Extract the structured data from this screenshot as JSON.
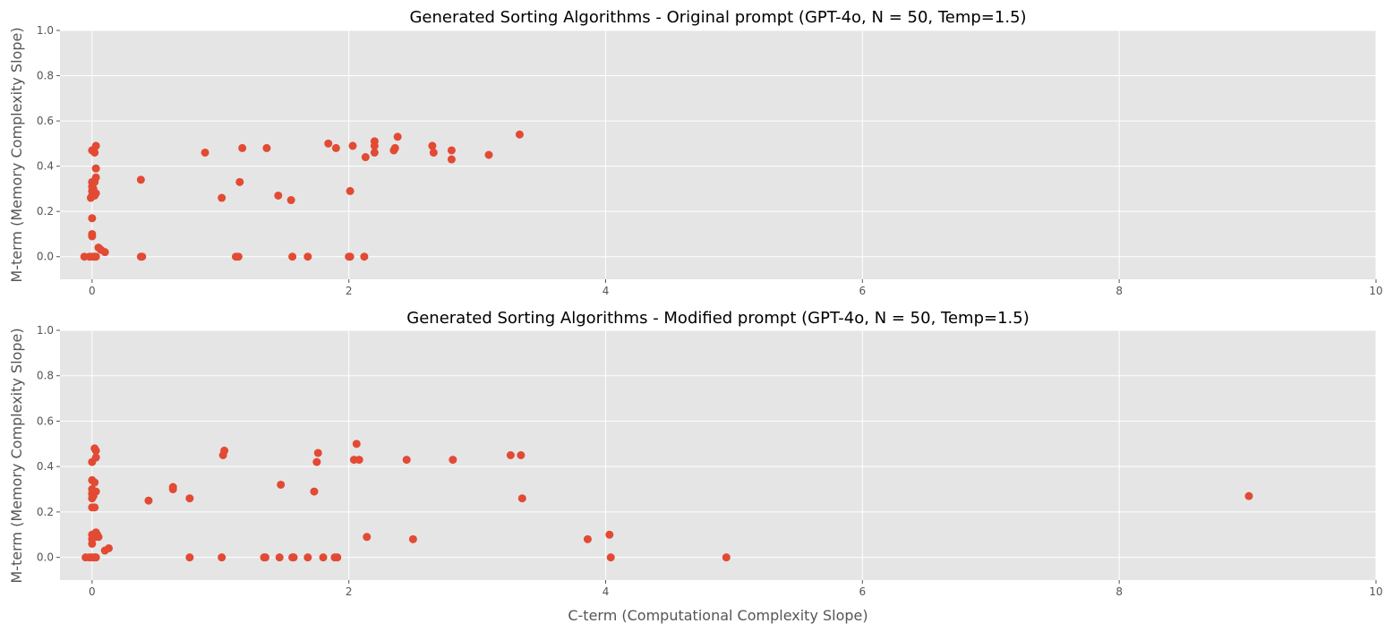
{
  "chart_data": [
    {
      "type": "scatter",
      "title": "Generated Sorting Algorithms - Original prompt (GPT-4o, N = 50, Temp=1.5)",
      "xlabel": "",
      "ylabel": "M-term (Memory Complexity Slope)",
      "xlim": [
        -0.25,
        10
      ],
      "ylim": [
        -0.1,
        1.0
      ],
      "xticks": [
        0,
        2,
        4,
        6,
        8,
        10
      ],
      "yticks": [
        0.0,
        0.2,
        0.4,
        0.6,
        0.8,
        1.0
      ],
      "xtick_labels": [
        "0",
        "2",
        "4",
        "6",
        "8",
        "10"
      ],
      "ytick_labels": [
        "0.0",
        "0.2",
        "0.4",
        "0.6",
        "0.8",
        "1.0"
      ],
      "grid": true,
      "marker_color": "#e24a33",
      "points": [
        [
          -0.06,
          0.0
        ],
        [
          -0.02,
          0.0
        ],
        [
          0.0,
          0.0
        ],
        [
          0.02,
          0.0
        ],
        [
          0.03,
          0.0
        ],
        [
          0.0,
          0.09
        ],
        [
          0.0,
          0.1
        ],
        [
          0.0,
          0.17
        ],
        [
          -0.01,
          0.26
        ],
        [
          0.0,
          0.27
        ],
        [
          0.01,
          0.28
        ],
        [
          0.0,
          0.29
        ],
        [
          0.01,
          0.3
        ],
        [
          0.0,
          0.31
        ],
        [
          0.0,
          0.33
        ],
        [
          0.02,
          0.33
        ],
        [
          0.03,
          0.35
        ],
        [
          0.02,
          0.27
        ],
        [
          0.03,
          0.28
        ],
        [
          0.03,
          0.39
        ],
        [
          0.0,
          0.47
        ],
        [
          0.02,
          0.46
        ],
        [
          0.03,
          0.49
        ],
        [
          0.05,
          0.04
        ],
        [
          0.07,
          0.03
        ],
        [
          0.1,
          0.02
        ],
        [
          0.38,
          0.0
        ],
        [
          0.39,
          0.0
        ],
        [
          0.38,
          0.34
        ],
        [
          0.88,
          0.46
        ],
        [
          1.01,
          0.26
        ],
        [
          1.12,
          0.0
        ],
        [
          1.14,
          0.0
        ],
        [
          1.15,
          0.33
        ],
        [
          1.17,
          0.48
        ],
        [
          1.36,
          0.48
        ],
        [
          1.45,
          0.27
        ],
        [
          1.55,
          0.25
        ],
        [
          1.56,
          0.0
        ],
        [
          1.68,
          0.0
        ],
        [
          1.84,
          0.5
        ],
        [
          1.9,
          0.48
        ],
        [
          2.0,
          0.0
        ],
        [
          2.01,
          0.0
        ],
        [
          2.01,
          0.29
        ],
        [
          2.03,
          0.49
        ],
        [
          2.12,
          0.0
        ],
        [
          2.13,
          0.44
        ],
        [
          2.2,
          0.46
        ],
        [
          2.2,
          0.49
        ],
        [
          2.2,
          0.51
        ],
        [
          2.35,
          0.47
        ],
        [
          2.36,
          0.48
        ],
        [
          2.38,
          0.53
        ],
        [
          2.65,
          0.49
        ],
        [
          2.66,
          0.46
        ],
        [
          2.8,
          0.43
        ],
        [
          2.8,
          0.47
        ],
        [
          3.09,
          0.45
        ],
        [
          3.33,
          0.54
        ]
      ]
    },
    {
      "type": "scatter",
      "title": "Generated Sorting Algorithms - Modified prompt (GPT-4o, N = 50, Temp=1.5)",
      "xlabel": "C-term (Computational Complexity Slope)",
      "ylabel": "M-term (Memory Complexity Slope)",
      "xlim": [
        -0.25,
        10
      ],
      "ylim": [
        -0.1,
        1.0
      ],
      "xticks": [
        0,
        2,
        4,
        6,
        8,
        10
      ],
      "yticks": [
        0.0,
        0.2,
        0.4,
        0.6,
        0.8,
        1.0
      ],
      "xtick_labels": [
        "0",
        "2",
        "4",
        "6",
        "8",
        "10"
      ],
      "ytick_labels": [
        "0.0",
        "0.2",
        "0.4",
        "0.6",
        "0.8",
        "1.0"
      ],
      "grid": true,
      "marker_color": "#e24a33",
      "points": [
        [
          -0.05,
          0.0
        ],
        [
          -0.02,
          0.0
        ],
        [
          0.0,
          0.0
        ],
        [
          0.02,
          0.0
        ],
        [
          0.03,
          0.0
        ],
        [
          0.0,
          0.06
        ],
        [
          0.0,
          0.08
        ],
        [
          0.0,
          0.1
        ],
        [
          0.02,
          0.09
        ],
        [
          0.03,
          0.11
        ],
        [
          0.04,
          0.1
        ],
        [
          0.05,
          0.09
        ],
        [
          0.0,
          0.22
        ],
        [
          0.02,
          0.22
        ],
        [
          0.0,
          0.26
        ],
        [
          0.01,
          0.27
        ],
        [
          0.0,
          0.28
        ],
        [
          0.02,
          0.29
        ],
        [
          0.03,
          0.29
        ],
        [
          0.0,
          0.3
        ],
        [
          0.0,
          0.34
        ],
        [
          0.02,
          0.33
        ],
        [
          0.0,
          0.42
        ],
        [
          0.03,
          0.44
        ],
        [
          0.03,
          0.47
        ],
        [
          0.02,
          0.48
        ],
        [
          0.1,
          0.03
        ],
        [
          0.13,
          0.04
        ],
        [
          0.44,
          0.25
        ],
        [
          0.63,
          0.31
        ],
        [
          0.63,
          0.3
        ],
        [
          0.76,
          0.26
        ],
        [
          0.76,
          0.0
        ],
        [
          1.01,
          0.0
        ],
        [
          1.02,
          0.45
        ],
        [
          1.03,
          0.47
        ],
        [
          1.34,
          0.0
        ],
        [
          1.35,
          0.0
        ],
        [
          1.46,
          0.0
        ],
        [
          1.47,
          0.32
        ],
        [
          1.56,
          0.0
        ],
        [
          1.57,
          0.0
        ],
        [
          1.68,
          0.0
        ],
        [
          1.73,
          0.29
        ],
        [
          1.75,
          0.42
        ],
        [
          1.76,
          0.46
        ],
        [
          1.8,
          0.0
        ],
        [
          1.89,
          0.0
        ],
        [
          1.91,
          0.0
        ],
        [
          2.04,
          0.43
        ],
        [
          2.06,
          0.5
        ],
        [
          2.08,
          0.43
        ],
        [
          2.14,
          0.09
        ],
        [
          2.45,
          0.43
        ],
        [
          2.5,
          0.08
        ],
        [
          2.81,
          0.43
        ],
        [
          3.26,
          0.45
        ],
        [
          3.34,
          0.45
        ],
        [
          3.35,
          0.26
        ],
        [
          3.86,
          0.08
        ],
        [
          4.03,
          0.1
        ],
        [
          4.04,
          0.0
        ],
        [
          4.94,
          0.0
        ],
        [
          9.01,
          0.27
        ]
      ]
    }
  ]
}
